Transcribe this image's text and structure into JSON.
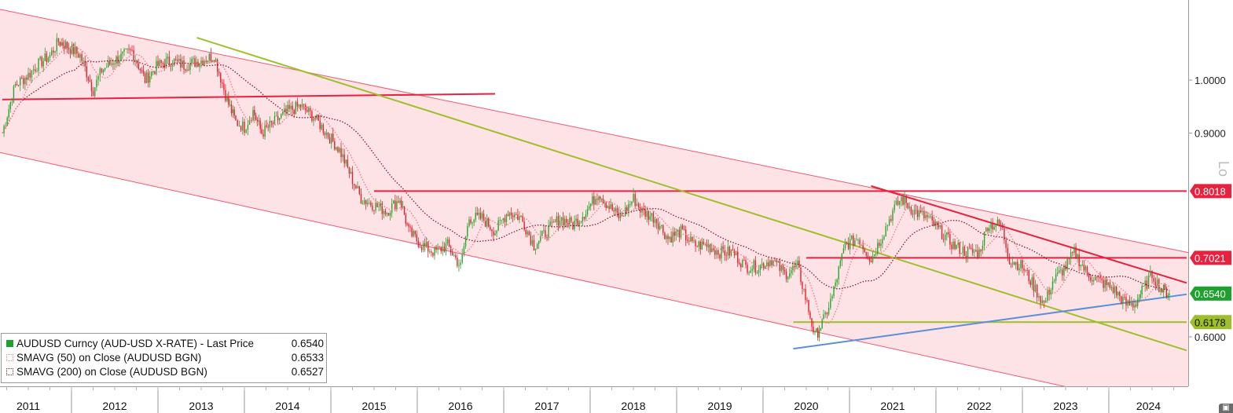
{
  "chart_data": {
    "type": "line",
    "title": "",
    "instrument": "AUDUSD Curncy (AUD-USD X-RATE)",
    "scale": "log",
    "scale_tag": "Lo",
    "ylim": [
      0.56,
      1.15
    ],
    "y_ticks": [
      {
        "value": 1.0,
        "label": "1.0000"
      },
      {
        "value": 0.9,
        "label": "0.9000"
      },
      {
        "value": 0.6,
        "label": "0.6000"
      }
    ],
    "x_tick_labels": [
      "2011",
      "2012",
      "2013",
      "2014",
      "2015",
      "2016",
      "2017",
      "2018",
      "2019",
      "2020",
      "2021",
      "2022",
      "2023",
      "2024"
    ],
    "price_tags": [
      {
        "label": "0.8018",
        "value": 0.8018,
        "color": "#e8213f"
      },
      {
        "label": "0.7021",
        "value": 0.7021,
        "color": "#e8213f"
      },
      {
        "label": "0.6540",
        "value": 0.654,
        "color": "#1fa22d"
      },
      {
        "label": "0.6178",
        "value": 0.6178,
        "color": "#9dc02a"
      }
    ],
    "legend": [
      {
        "name": "AUDUSD Curncy (AUD-USD X-RATE) - Last Price",
        "value": "0.6540",
        "color": "#1fa22d",
        "style": "solid"
      },
      {
        "name": "SMAVG (50)  on Close (AUDUSD BGN)",
        "value": "0.6533",
        "color": "#f07a86",
        "style": "dotted"
      },
      {
        "name": "SMAVG (200)  on Close (AUDUSD BGN)",
        "value": "0.6527",
        "color": "#8b1a2a",
        "style": "dotted"
      }
    ],
    "series": [
      {
        "name": "AUDUSD Curncy (AUD-USD X-RATE) - Last Price",
        "x": [
          2010.7,
          2010.85,
          2011.0,
          2011.1,
          2011.25,
          2011.35,
          2011.45,
          2011.6,
          2011.75,
          2011.85,
          2012.0,
          2012.2,
          2012.35,
          2012.5,
          2012.65,
          2012.8,
          2013.0,
          2013.15,
          2013.3,
          2013.4,
          2013.5,
          2013.6,
          2013.7,
          2013.85,
          2014.0,
          2014.15,
          2014.3,
          2014.45,
          2014.6,
          2014.75,
          2014.85,
          2015.0,
          2015.15,
          2015.3,
          2015.4,
          2015.55,
          2015.7,
          2015.85,
          2016.0,
          2016.1,
          2016.25,
          2016.4,
          2016.55,
          2016.7,
          2016.85,
          2017.0,
          2017.15,
          2017.3,
          2017.45,
          2017.6,
          2017.7,
          2017.85,
          2018.0,
          2018.1,
          2018.25,
          2018.4,
          2018.55,
          2018.7,
          2018.85,
          2019.0,
          2019.15,
          2019.3,
          2019.45,
          2019.6,
          2019.75,
          2019.9,
          2020.1,
          2020.2,
          2020.3,
          2020.45,
          2020.6,
          2020.75,
          2020.9,
          2021.0,
          2021.1,
          2021.25,
          2021.4,
          2021.55,
          2021.7,
          2021.85,
          2022.0,
          2022.1,
          2022.25,
          2022.35,
          2022.5,
          2022.65,
          2022.75,
          2022.85,
          2023.0,
          2023.1,
          2023.25,
          2023.4,
          2023.55,
          2023.7,
          2023.8,
          2023.9,
          2024.0,
          2024.1,
          2024.2
        ],
        "values": [
          0.9,
          0.99,
          1.01,
          1.03,
          1.05,
          1.08,
          1.07,
          1.05,
          0.98,
          1.02,
          1.04,
          1.06,
          1.0,
          1.03,
          1.04,
          1.03,
          1.04,
          1.05,
          0.96,
          0.92,
          0.91,
          0.94,
          0.9,
          0.92,
          0.94,
          0.95,
          0.93,
          0.9,
          0.87,
          0.82,
          0.79,
          0.78,
          0.77,
          0.79,
          0.74,
          0.72,
          0.71,
          0.72,
          0.69,
          0.76,
          0.76,
          0.74,
          0.77,
          0.76,
          0.72,
          0.74,
          0.76,
          0.75,
          0.77,
          0.8,
          0.78,
          0.76,
          0.79,
          0.77,
          0.76,
          0.73,
          0.74,
          0.72,
          0.72,
          0.71,
          0.71,
          0.69,
          0.69,
          0.7,
          0.68,
          0.69,
          0.6,
          0.62,
          0.65,
          0.72,
          0.73,
          0.7,
          0.74,
          0.77,
          0.79,
          0.77,
          0.76,
          0.74,
          0.72,
          0.71,
          0.71,
          0.75,
          0.75,
          0.7,
          0.69,
          0.66,
          0.64,
          0.67,
          0.69,
          0.71,
          0.68,
          0.67,
          0.66,
          0.64,
          0.64,
          0.66,
          0.68,
          0.66,
          0.654
        ]
      }
    ],
    "annotations": {
      "channel": {
        "upper": [
          [
            2010.7,
            1.15
          ],
          [
            2024.4,
            0.71
          ]
        ],
        "lower": [
          [
            2010.7,
            0.865
          ],
          [
            2022.2,
            0.56
          ]
        ]
      },
      "red_lines": [
        {
          "from": [
            2010.7,
            0.962
          ],
          "to": [
            2016.4,
            0.973
          ]
        },
        {
          "from": [
            2015.0,
            0.8018
          ],
          "to": [
            2024.4,
            0.8018
          ]
        },
        {
          "from": [
            2020.0,
            0.7021
          ],
          "to": [
            2024.4,
            0.7021
          ]
        },
        {
          "from": [
            2020.75,
            0.81
          ],
          "to": [
            2024.4,
            0.668
          ]
        }
      ],
      "green_lines": [
        {
          "from": [
            2012.95,
            1.088
          ],
          "to": [
            2024.4,
            0.584
          ]
        },
        {
          "from": [
            2019.85,
            0.6178
          ],
          "to": [
            2024.4,
            0.6178
          ]
        }
      ],
      "blue_line": {
        "from": [
          2019.85,
          0.586
        ],
        "to": [
          2024.4,
          0.653
        ]
      }
    }
  },
  "icons": {
    "corner": "chart-menu-icon"
  }
}
